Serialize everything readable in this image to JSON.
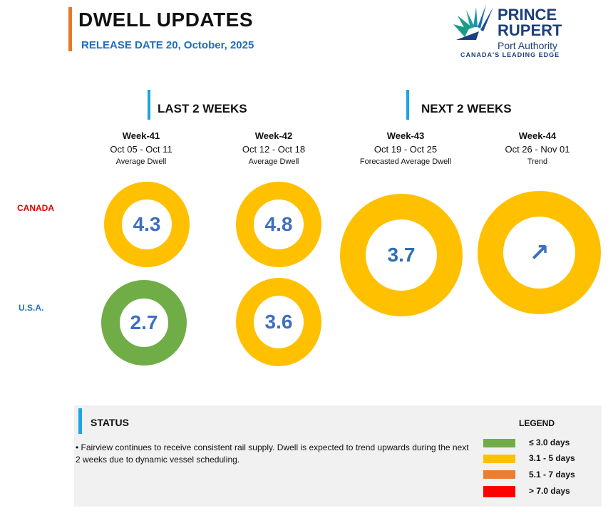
{
  "header": {
    "title": "DWELL UPDATES",
    "release": "RELEASE DATE 20, October, 2025"
  },
  "logo": {
    "line1": "PRINCE",
    "line2": "RUPERT",
    "line3": "Port Authority",
    "line4": "CANADA'S LEADING EDGE"
  },
  "sections": {
    "last": "LAST 2 WEEKS",
    "next": "NEXT 2 WEEKS"
  },
  "weeks": [
    {
      "name": "Week-41",
      "range": "Oct 05 - Oct 11",
      "sub": "Average Dwell"
    },
    {
      "name": "Week-42",
      "range": "Oct 12 - Oct 18",
      "sub": "Average Dwell"
    },
    {
      "name": "Week-43",
      "range": "Oct 19 - Oct 25",
      "sub": "Forecasted Average Dwell"
    },
    {
      "name": "Week-44",
      "range": "Oct 26 - Nov 01",
      "sub": "Trend"
    }
  ],
  "rows": {
    "canada": "CANADA",
    "usa": "U.S.A."
  },
  "values": {
    "canada_wk41": "4.3",
    "canada_wk42": "4.8",
    "usa_wk41": "2.7",
    "usa_wk42": "3.6",
    "forecast_wk43": "3.7",
    "trend_wk44": "↗"
  },
  "colors": {
    "green": "#70ad47",
    "yellow": "#ffc000",
    "orange": "#ed7d31",
    "red": "#ff0000",
    "accent_blue": "#1aa5e6",
    "value_blue": "#3f6fbf"
  },
  "status": {
    "title": "STATUS",
    "text": "•  Fairview continues to receive consistent rail supply. Dwell is expected to trend upwards during the next 2 weeks due to dynamic vessel scheduling."
  },
  "legend": {
    "title": "LEGEND",
    "items": [
      {
        "label": "≤ 3.0 days",
        "color": "#70ad47"
      },
      {
        "label": "3.1 - 5 days",
        "color": "#ffc000"
      },
      {
        "label": "5.1 - 7 days",
        "color": "#ed7d31"
      },
      {
        "label": "> 7.0 days",
        "color": "#ff0000"
      }
    ]
  }
}
